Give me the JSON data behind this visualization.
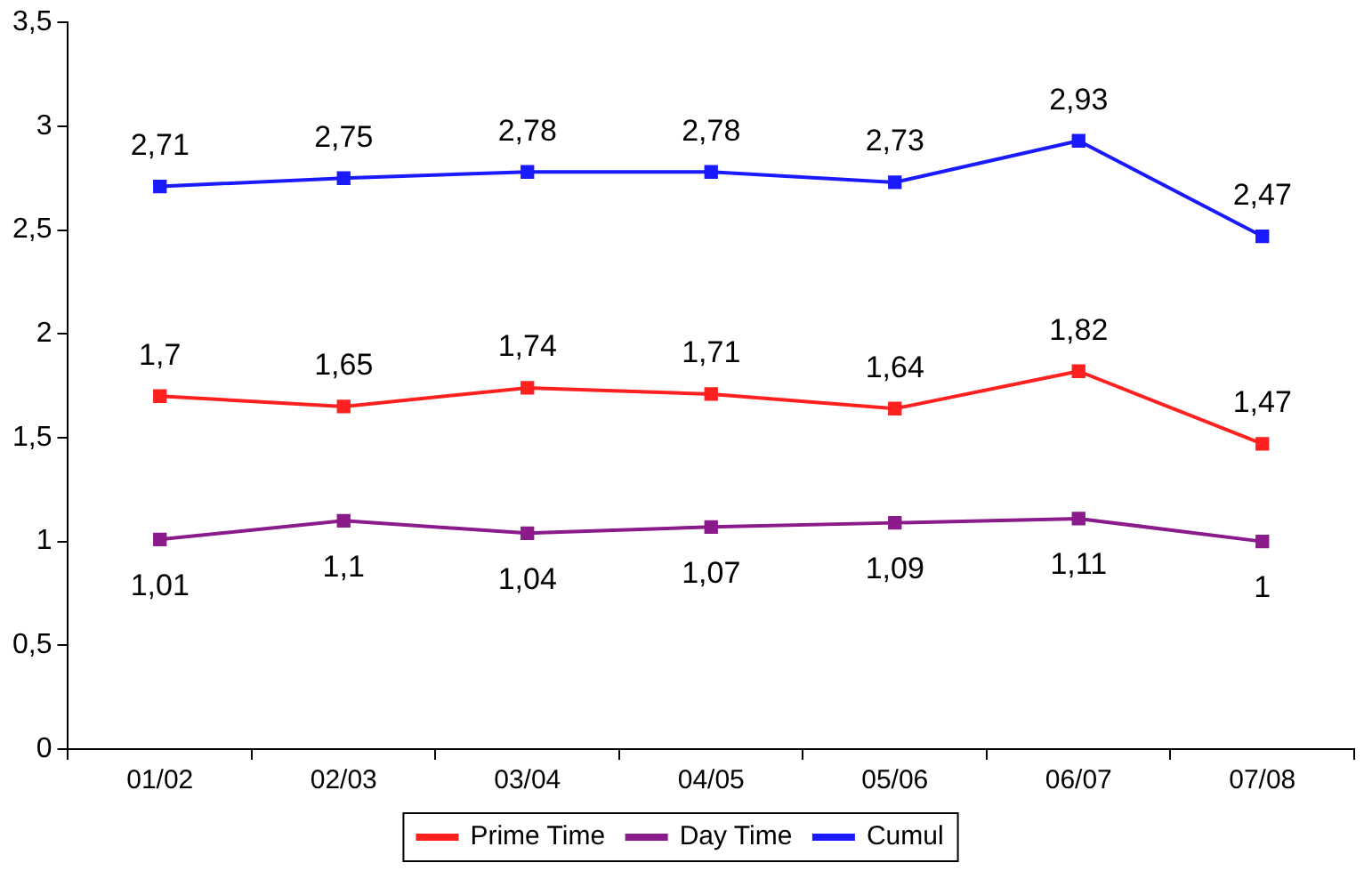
{
  "chart_data": {
    "type": "line",
    "categories": [
      "01/02",
      "02/03",
      "03/04",
      "04/05",
      "05/06",
      "06/07",
      "07/08"
    ],
    "series": [
      {
        "name": "Prime Time",
        "color": "#ff2020",
        "values": [
          1.7,
          1.65,
          1.74,
          1.71,
          1.64,
          1.82,
          1.47
        ],
        "value_labels": [
          "1,7",
          "1,65",
          "1,74",
          "1,71",
          "1,64",
          "1,82",
          "1,47"
        ]
      },
      {
        "name": "Day Time",
        "color": "#8b1a8b",
        "values": [
          1.01,
          1.1,
          1.04,
          1.07,
          1.09,
          1.11,
          1
        ],
        "value_labels": [
          "1,01",
          "1,1",
          "1,04",
          "1,07",
          "1,09",
          "1,11",
          "1"
        ]
      },
      {
        "name": "Cumul",
        "color": "#1a1aff",
        "values": [
          2.71,
          2.75,
          2.78,
          2.78,
          2.73,
          2.93,
          2.47
        ],
        "value_labels": [
          "2,71",
          "2,75",
          "2,78",
          "2,78",
          "2,73",
          "2,93",
          "2,47"
        ]
      }
    ],
    "ylim": [
      0,
      3.5
    ],
    "yticks": [
      0,
      {
        "value": 0.5,
        "label": "0,5"
      },
      1,
      {
        "value": 1.5,
        "label": "1,5"
      },
      2,
      {
        "value": 2.5,
        "label": "2,5"
      },
      3,
      {
        "value": 3.5,
        "label": "3,5"
      }
    ],
    "grid": false,
    "legend": "bottom",
    "marker": "square",
    "line_style": "solid"
  }
}
